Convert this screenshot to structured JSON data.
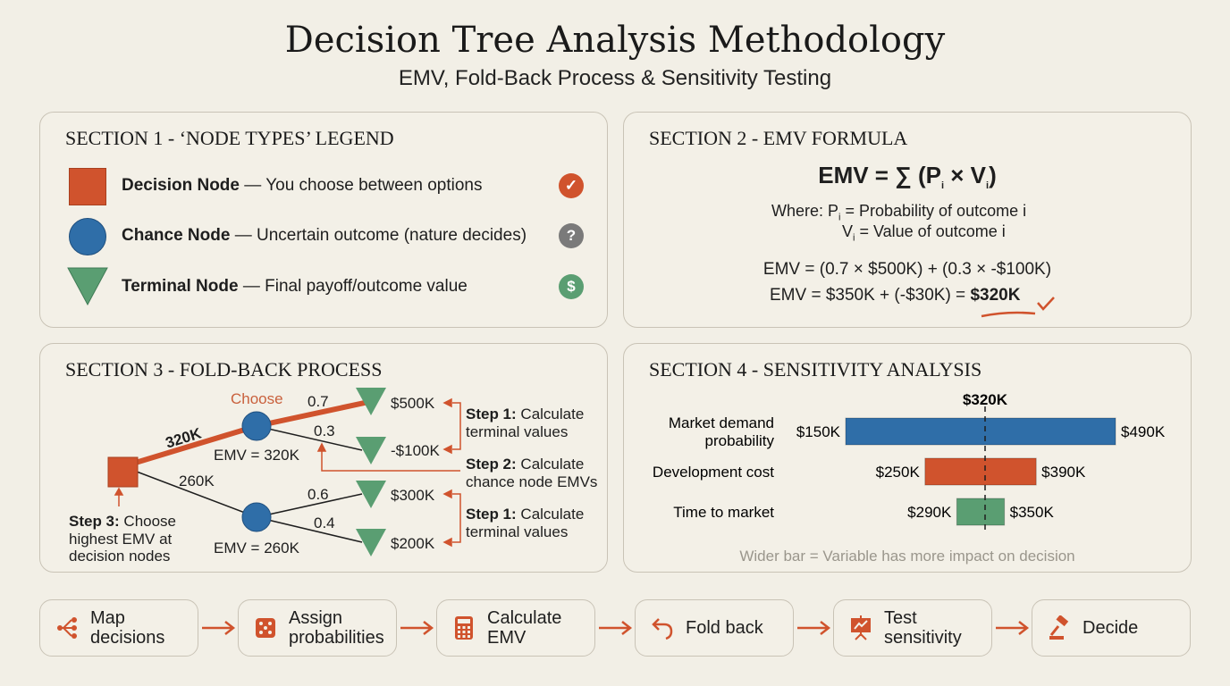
{
  "header": {
    "title": "Decision Tree Analysis Methodology",
    "subtitle": "EMV, Fold-Back Process & Sensitivity Testing"
  },
  "section1": {
    "title": "SECTION 1 - ‘NODE TYPES’ LEGEND",
    "items": [
      {
        "name": "Decision Node",
        "desc": " — You choose between options",
        "icon": "check-icon",
        "color": "#d0532d",
        "glyph": "✓"
      },
      {
        "name": "Chance Node",
        "desc": " — Uncertain outcome (nature decides)",
        "icon": "question-icon",
        "color": "#7a7a7a",
        "glyph": "?"
      },
      {
        "name": "Terminal Node",
        "desc": " — Final payoff/outcome value",
        "icon": "dollar-icon",
        "color": "#5a9e72",
        "glyph": "$"
      }
    ]
  },
  "section2": {
    "title": "SECTION 2 - EMV FORMULA",
    "formula_lhs": "EMV = ∑ (P",
    "formula_x": " × V",
    "formula_end": ")",
    "sub": "i",
    "where_label": "Where:  P",
    "where_p": " = Probability of outcome i",
    "where_v": " = Value of outcome i",
    "v": "V",
    "calc1": "EMV = (0.7 × $500K) + (0.3 × -$100K)",
    "calc2": "EMV = $350K + (-$30K) = ",
    "result": "$320K"
  },
  "section3": {
    "title": "SECTION 3 - FOLD-BACK PROCESS",
    "choose": "Choose",
    "branch_top": "320K",
    "branch_bottom": "260K",
    "emv_top": "EMV = 320K",
    "emv_bottom": "EMV = 260K",
    "probs": [
      "0.7",
      "0.3",
      "0.6",
      "0.4"
    ],
    "payoffs": [
      "$500K",
      "-$100K",
      "$300K",
      "$200K"
    ],
    "step1_bold": "Step 1:",
    "step1_text": [
      " Calculate",
      "terminal values"
    ],
    "step2_bold": "Step 2:",
    "step2_text": [
      " Calculate",
      "chance node EMVs"
    ],
    "step3_bold": "Step 3:",
    "step3_text": [
      " Choose",
      "highest EMV at",
      "decision nodes"
    ]
  },
  "section4": {
    "title": "SECTION 4 - SENSITIVITY ANALYSIS",
    "note": "Wider bar = Variable has more impact on decision"
  },
  "chart_data": {
    "type": "bar",
    "orientation": "horizontal",
    "subtype": "tornado",
    "baseline": 320,
    "baseline_label": "$320K",
    "categories": [
      "Market demand probability",
      "Development cost",
      "Time to market"
    ],
    "category_lines": [
      [
        "Market demand",
        "probability"
      ],
      [
        "Development cost"
      ],
      [
        "Time to market"
      ]
    ],
    "low": [
      150,
      250,
      290
    ],
    "high": [
      490,
      390,
      350
    ],
    "low_labels": [
      "$150K",
      "$250K",
      "$290K"
    ],
    "high_labels": [
      "$490K",
      "$390K",
      "$350K"
    ],
    "colors": [
      "#2f6ea8",
      "#d0532d",
      "#5a9e72"
    ]
  },
  "steps": [
    {
      "label": [
        "Map",
        "decisions"
      ],
      "icon": "decision-tree-icon"
    },
    {
      "label": [
        "Assign",
        "probabilities"
      ],
      "icon": "dice-icon"
    },
    {
      "label": [
        "Calculate",
        "EMV"
      ],
      "icon": "calculator-icon"
    },
    {
      "label": [
        "Fold back"
      ],
      "icon": "undo-arrow-icon"
    },
    {
      "label": [
        "Test",
        "sensitivity"
      ],
      "icon": "presentation-chart-icon"
    },
    {
      "label": [
        "Decide"
      ],
      "icon": "gavel-icon"
    }
  ],
  "colors": {
    "accent": "#d0532d",
    "blue": "#2f6ea8",
    "green": "#5a9e72",
    "background": "#f2efe6"
  }
}
